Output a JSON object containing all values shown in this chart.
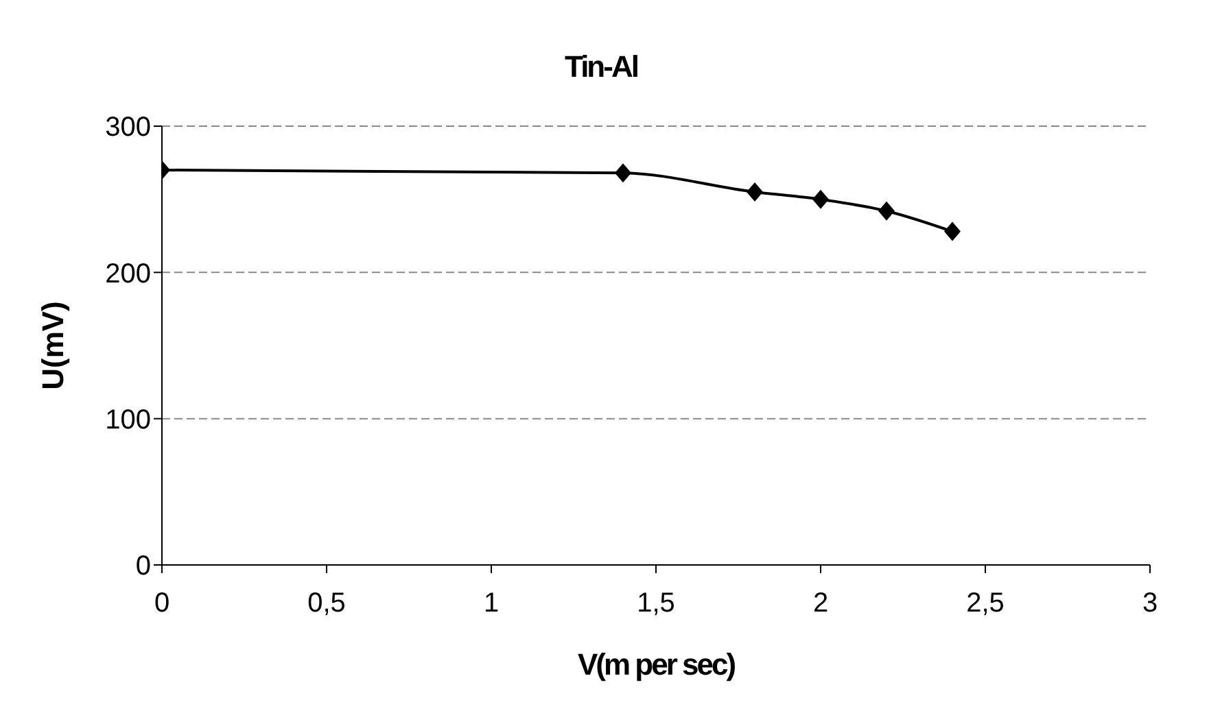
{
  "chart_data": {
    "type": "line",
    "title": "Tin-Al",
    "xlabel": "V(m per sec)",
    "ylabel": "U(mV)",
    "x": [
      0,
      1.4,
      1.8,
      2,
      2.2,
      2.4
    ],
    "series": [
      {
        "color": "#000000",
        "values": [
          270,
          268,
          255,
          250,
          242,
          228
        ]
      }
    ],
    "xlim": [
      0,
      3
    ],
    "xticks": [
      0,
      {
        "value": 0.5,
        "label": "0,5"
      },
      1,
      {
        "value": 1.5,
        "label": "1,5"
      },
      2,
      {
        "value": 2.5,
        "label": "2,5"
      },
      3
    ],
    "ylim": [
      0,
      300
    ],
    "yticks": [
      0,
      100,
      200,
      300
    ],
    "grid": "y",
    "marker": "diamond",
    "line_style": "solid",
    "legend": false
  }
}
